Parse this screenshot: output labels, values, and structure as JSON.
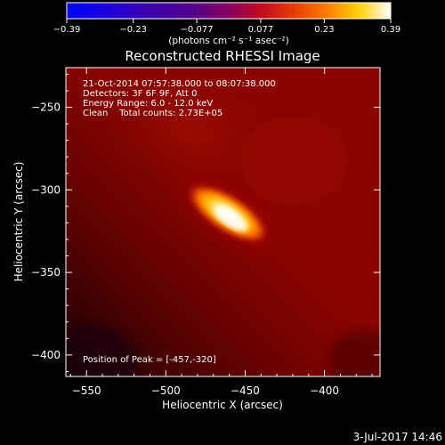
{
  "chart_data": {
    "type": "heatmap",
    "title": "Reconstructed RHESSI Image",
    "xlabel": "Heliocentric X (arcsec)",
    "ylabel": "Heliocentric Y (arcsec)",
    "xlim": [
      -563,
      -365
    ],
    "ylim": [
      -413,
      -226
    ],
    "xticks": [
      -550,
      -500,
      -450,
      -400
    ],
    "yticks": [
      -250,
      -300,
      -350,
      -400
    ],
    "colorbar": {
      "colormap": "rhessi-fire",
      "range": [
        -0.39,
        0.39
      ],
      "ticks": [
        "-0.39",
        "-0.23",
        "-0.077",
        "0.077",
        "0.23",
        "0.39"
      ],
      "units": "(photons cm⁻² s⁻¹ asec⁻²)"
    },
    "info": {
      "time": "21-Oct-2014 07:57:38.000 to 08:07:38.000",
      "detectors": "Detectors: 3F 6F 9F, Att 0",
      "energy": "Energy Range: 6.0 - 12.0 keV",
      "clean": "Clean    Total counts: 2.73E+05"
    },
    "peak_label": "Position of Peak = [-457,-320]",
    "source": {
      "peak_x": -457,
      "peak_y": -320,
      "peak_value": 0.39,
      "background_value": 0.16,
      "orientation": "elongated NW-SE"
    }
  },
  "footer": {
    "date": "3-Jul-2017 14:46"
  }
}
